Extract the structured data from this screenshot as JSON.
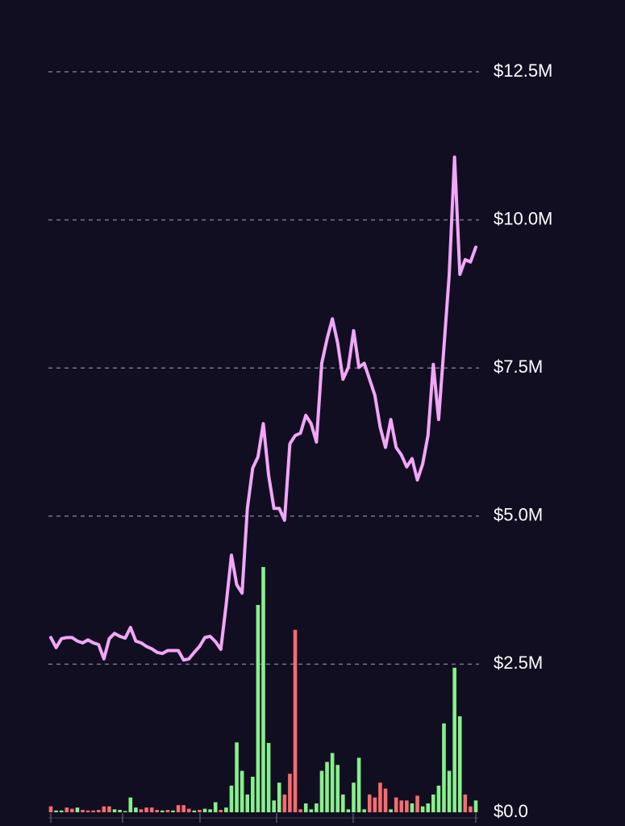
{
  "chart_data": {
    "type": "line",
    "ylim": [
      0,
      12.5
    ],
    "yticks": [
      {
        "value": 0,
        "label": "$0.0"
      },
      {
        "value": 2.5,
        "label": "$2.5M"
      },
      {
        "value": 5.0,
        "label": "$5.0M"
      },
      {
        "value": 7.5,
        "label": "$7.5M"
      },
      {
        "value": 10.0,
        "label": "$10.0M"
      },
      {
        "value": 12.5,
        "label": "$12.5M"
      }
    ],
    "grid": true,
    "line": {
      "color": "#f2a6f7",
      "values": [
        2.95,
        2.78,
        2.93,
        2.95,
        2.95,
        2.89,
        2.86,
        2.91,
        2.86,
        2.83,
        2.59,
        2.93,
        3.02,
        2.97,
        2.94,
        3.12,
        2.89,
        2.86,
        2.8,
        2.76,
        2.7,
        2.68,
        2.73,
        2.73,
        2.73,
        2.57,
        2.59,
        2.7,
        2.8,
        2.95,
        2.97,
        2.88,
        2.75,
        3.5,
        4.34,
        3.84,
        3.7,
        5.13,
        5.81,
        6.0,
        6.56,
        5.69,
        5.13,
        5.13,
        4.93,
        6.22,
        6.36,
        6.4,
        6.7,
        6.56,
        6.25,
        7.58,
        7.99,
        8.33,
        7.92,
        7.31,
        7.51,
        8.13,
        7.51,
        7.58,
        7.31,
        7.04,
        6.5,
        6.16,
        6.63,
        6.16,
        6.03,
        5.83,
        5.97,
        5.61,
        5.88,
        6.36,
        7.56,
        6.63,
        7.85,
        9.08,
        11.06,
        9.08,
        9.33,
        9.29,
        9.54
      ]
    },
    "volume": {
      "values": [
        0.1,
        0.03,
        0.03,
        0.08,
        0.06,
        0.08,
        0.04,
        0.03,
        0.03,
        0.04,
        0.1,
        0.1,
        0.05,
        0.04,
        0.02,
        0.25,
        0.08,
        0.05,
        0.08,
        0.08,
        0.04,
        0.03,
        0.04,
        0.03,
        0.12,
        0.12,
        0.06,
        0.03,
        0.04,
        0.06,
        0.05,
        0.17,
        0.04,
        0.08,
        0.45,
        1.18,
        0.7,
        0.3,
        0.6,
        3.5,
        4.14,
        1.17,
        0.2,
        0.5,
        0.3,
        0.65,
        3.08,
        0.05,
        0.15,
        0.05,
        0.15,
        0.7,
        0.85,
        1.0,
        0.8,
        0.3,
        0.05,
        0.5,
        0.92,
        0.05,
        0.3,
        0.25,
        0.5,
        0.4,
        0.05,
        0.25,
        0.2,
        0.2,
        0.15,
        0.28,
        0.1,
        0.15,
        0.3,
        0.45,
        1.5,
        0.7,
        2.44,
        1.62,
        0.3,
        0.1,
        0.2
      ],
      "colors": [
        "#f76c6c",
        "#86f08a",
        "#86f08a",
        "#f76c6c",
        "#f76c6c",
        "#86f08a",
        "#f76c6c",
        "#f76c6c",
        "#f76c6c",
        "#f76c6c",
        "#f76c6c",
        "#f76c6c",
        "#86f08a",
        "#86f08a",
        "#86f08a",
        "#86f08a",
        "#86f08a",
        "#f76c6c",
        "#f76c6c",
        "#f76c6c",
        "#f76c6c",
        "#86f08a",
        "#f76c6c",
        "#86f08a",
        "#f76c6c",
        "#f76c6c",
        "#f76c6c",
        "#86f08a",
        "#f76c6c",
        "#86f08a",
        "#86f08a",
        "#86f08a",
        "#f76c6c",
        "#86f08a",
        "#86f08a",
        "#86f08a",
        "#86f08a",
        "#86f08a",
        "#86f08a",
        "#86f08a",
        "#86f08a",
        "#86f08a",
        "#86f08a",
        "#86f08a",
        "#f76c6c",
        "#f76c6c",
        "#f76c6c",
        "#f76c6c",
        "#86f08a",
        "#86f08a",
        "#86f08a",
        "#86f08a",
        "#86f08a",
        "#86f08a",
        "#86f08a",
        "#86f08a",
        "#86f08a",
        "#86f08a",
        "#86f08a",
        "#86f08a",
        "#f76c6c",
        "#f76c6c",
        "#f76c6c",
        "#f76c6c",
        "#86f08a",
        "#f76c6c",
        "#f76c6c",
        "#f76c6c",
        "#86f08a",
        "#f76c6c",
        "#86f08a",
        "#86f08a",
        "#86f08a",
        "#86f08a",
        "#86f08a",
        "#86f08a",
        "#86f08a",
        "#86f08a",
        "#f76c6c",
        "#f76c6c",
        "#86f08a"
      ]
    }
  }
}
